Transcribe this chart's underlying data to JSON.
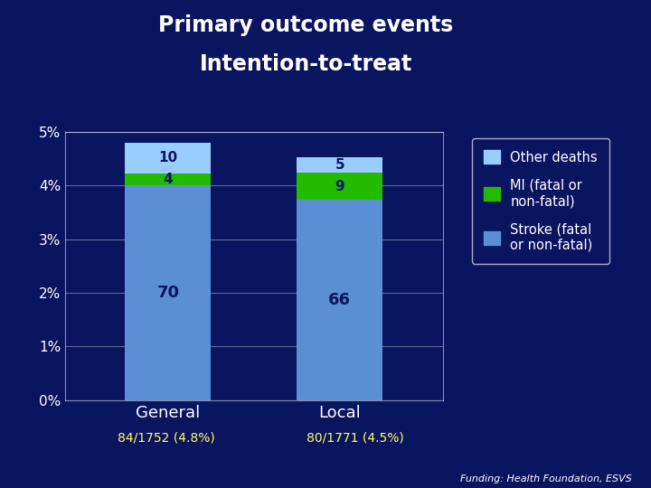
{
  "title_line1": "Primary outcome events",
  "title_line2": "Intention-to-treat",
  "categories": [
    "General",
    "Local"
  ],
  "stroke_values": [
    70,
    66
  ],
  "mi_values": [
    4,
    9
  ],
  "other_deaths_values": [
    10,
    5
  ],
  "total_n": [
    1752,
    1771
  ],
  "total_events": [
    84,
    80
  ],
  "pct_labels": [
    "84/1752 (4.8%)",
    "80/1771 (4.5%)"
  ],
  "stroke_color": "#5B8FD4",
  "mi_color": "#22BB00",
  "other_color": "#99CCFF",
  "bg_color": "#0A1560",
  "text_color": "#FFFFFF",
  "legend_bg": "#0A1560",
  "legend_edge": "#AAAACC",
  "bar_label_color": "#0A1560",
  "sub_label_color": "#FFFF66",
  "ylim": [
    0,
    0.05
  ],
  "yticks": [
    0,
    0.01,
    0.02,
    0.03,
    0.04,
    0.05
  ],
  "ytick_labels": [
    "0%",
    "1%",
    "2%",
    "3%",
    "4%",
    "5%"
  ],
  "legend_labels": [
    "Other deaths",
    "MI (fatal or\nnon-fatal)",
    "Stroke (fatal\nor non-fatal)"
  ],
  "funding_text": "Funding: Health Foundation, ESVS"
}
